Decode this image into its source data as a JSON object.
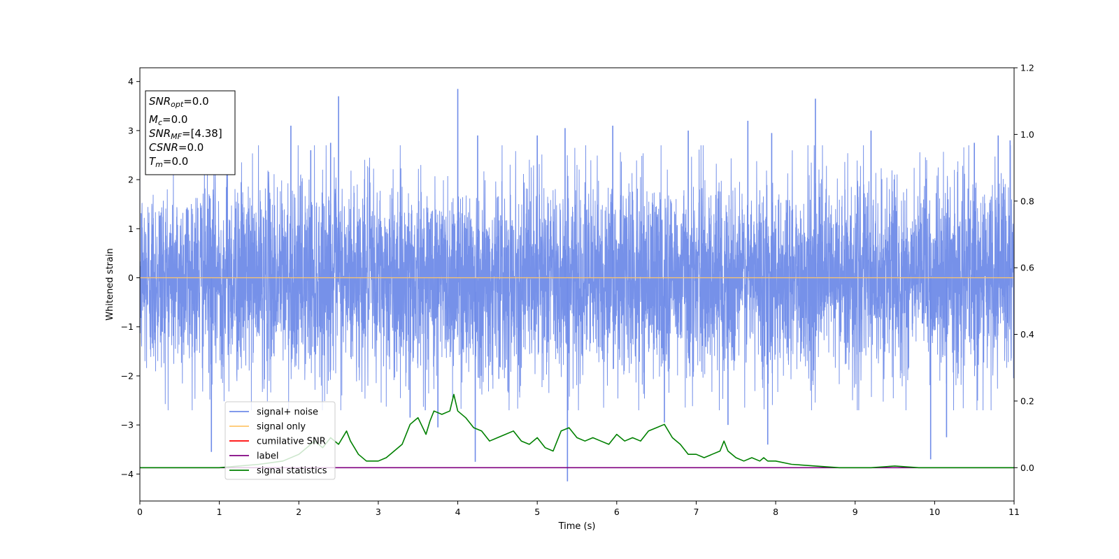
{
  "chart_data": {
    "type": "line",
    "xlabel": "Time (s)",
    "ylabel": "Whitened strain",
    "xlim": [
      0,
      11
    ],
    "ylim": [
      -4.55,
      4.28
    ],
    "ylim_right": [
      -0.1,
      1.2
    ],
    "xticks": [
      "0",
      "1",
      "2",
      "3",
      "4",
      "5",
      "6",
      "7",
      "8",
      "9",
      "10",
      "11"
    ],
    "yticks": [
      "−4",
      "−3",
      "−2",
      "−1",
      "0",
      "1",
      "2",
      "3",
      "4"
    ],
    "yticks_right": [
      "0.0",
      "0.2",
      "0.4",
      "0.6",
      "0.8",
      "1.0",
      "1.2"
    ],
    "grid": false,
    "legend_position": "lower-left",
    "legend": [
      {
        "label": "signal+ noise",
        "color": "#6f8be8"
      },
      {
        "label": "signal only",
        "color": "#ffc66b"
      },
      {
        "label": "cumilative SNR",
        "color": "#ff0000"
      },
      {
        "label": "label",
        "color": "#800080"
      },
      {
        "label": "signal statistics",
        "color": "#008000"
      }
    ],
    "annotation": [
      {
        "base": "SNR",
        "sub": "opt",
        "value": "=0.0"
      },
      {
        "base": "M",
        "sub": "c",
        "value": "=0.0"
      },
      {
        "base": "SNR",
        "sub": "MF",
        "value": "=[4.38]"
      },
      {
        "base": "CSNR",
        "sub": "",
        "value": "=0.0"
      },
      {
        "base": "T",
        "sub": "m",
        "value": "=0.0"
      }
    ],
    "series": [
      {
        "name": "signal+ noise",
        "axis": "left",
        "noise_std": 1.0,
        "spikes": [
          [
            0.9,
            -3.55
          ],
          [
            1.1,
            2.7
          ],
          [
            1.9,
            3.1
          ],
          [
            2.15,
            2.6
          ],
          [
            2.4,
            2.75
          ],
          [
            2.5,
            3.7
          ],
          [
            3.4,
            -2.85
          ],
          [
            3.75,
            -3.05
          ],
          [
            4.0,
            3.85
          ],
          [
            4.22,
            -3.75
          ],
          [
            4.25,
            2.9
          ],
          [
            5.0,
            2.9
          ],
          [
            5.35,
            3.05
          ],
          [
            5.38,
            -4.15
          ],
          [
            5.95,
            3.1
          ],
          [
            6.6,
            -2.95
          ],
          [
            6.9,
            3.0
          ],
          [
            7.4,
            -3.0
          ],
          [
            7.65,
            3.2
          ],
          [
            7.9,
            -3.4
          ],
          [
            7.95,
            2.95
          ],
          [
            8.5,
            3.65
          ],
          [
            9.2,
            3.0
          ],
          [
            9.95,
            -3.7
          ],
          [
            10.15,
            -3.25
          ],
          [
            10.5,
            2.75
          ],
          [
            10.8,
            2.9
          ],
          [
            10.95,
            2.8
          ]
        ]
      },
      {
        "name": "signal only",
        "axis": "left",
        "x": [
          0,
          11
        ],
        "y": [
          0,
          0
        ]
      },
      {
        "name": "label",
        "axis": "right",
        "x": [
          0,
          11
        ],
        "y": [
          0,
          0
        ]
      },
      {
        "name": "signal statistics",
        "axis": "right",
        "x": [
          0,
          1,
          1.5,
          1.8,
          2.0,
          2.2,
          2.3,
          2.4,
          2.5,
          2.6,
          2.65,
          2.75,
          2.85,
          3.0,
          3.1,
          3.2,
          3.3,
          3.4,
          3.45,
          3.5,
          3.6,
          3.65,
          3.7,
          3.8,
          3.9,
          3.95,
          4.0,
          4.1,
          4.2,
          4.3,
          4.4,
          4.5,
          4.6,
          4.7,
          4.8,
          4.9,
          5.0,
          5.1,
          5.2,
          5.3,
          5.4,
          5.5,
          5.6,
          5.7,
          5.8,
          5.9,
          6.0,
          6.1,
          6.2,
          6.3,
          6.4,
          6.5,
          6.6,
          6.7,
          6.8,
          6.9,
          7.0,
          7.1,
          7.2,
          7.3,
          7.35,
          7.4,
          7.5,
          7.6,
          7.7,
          7.8,
          7.85,
          7.9,
          8.0,
          8.2,
          8.5,
          8.8,
          9.2,
          9.5,
          9.8,
          10.2,
          11
        ],
        "y": [
          0.0,
          0.0,
          0.01,
          0.02,
          0.04,
          0.08,
          0.06,
          0.09,
          0.07,
          0.11,
          0.08,
          0.04,
          0.02,
          0.02,
          0.03,
          0.05,
          0.07,
          0.13,
          0.14,
          0.15,
          0.1,
          0.14,
          0.17,
          0.16,
          0.17,
          0.22,
          0.17,
          0.15,
          0.12,
          0.11,
          0.08,
          0.09,
          0.1,
          0.11,
          0.08,
          0.07,
          0.09,
          0.06,
          0.05,
          0.11,
          0.12,
          0.09,
          0.08,
          0.09,
          0.08,
          0.07,
          0.1,
          0.08,
          0.09,
          0.08,
          0.11,
          0.12,
          0.13,
          0.09,
          0.07,
          0.04,
          0.04,
          0.03,
          0.04,
          0.05,
          0.08,
          0.05,
          0.03,
          0.02,
          0.03,
          0.02,
          0.03,
          0.02,
          0.02,
          0.01,
          0.005,
          0.0,
          0.0,
          0.005,
          0.0,
          0.0,
          0.0
        ]
      }
    ]
  }
}
